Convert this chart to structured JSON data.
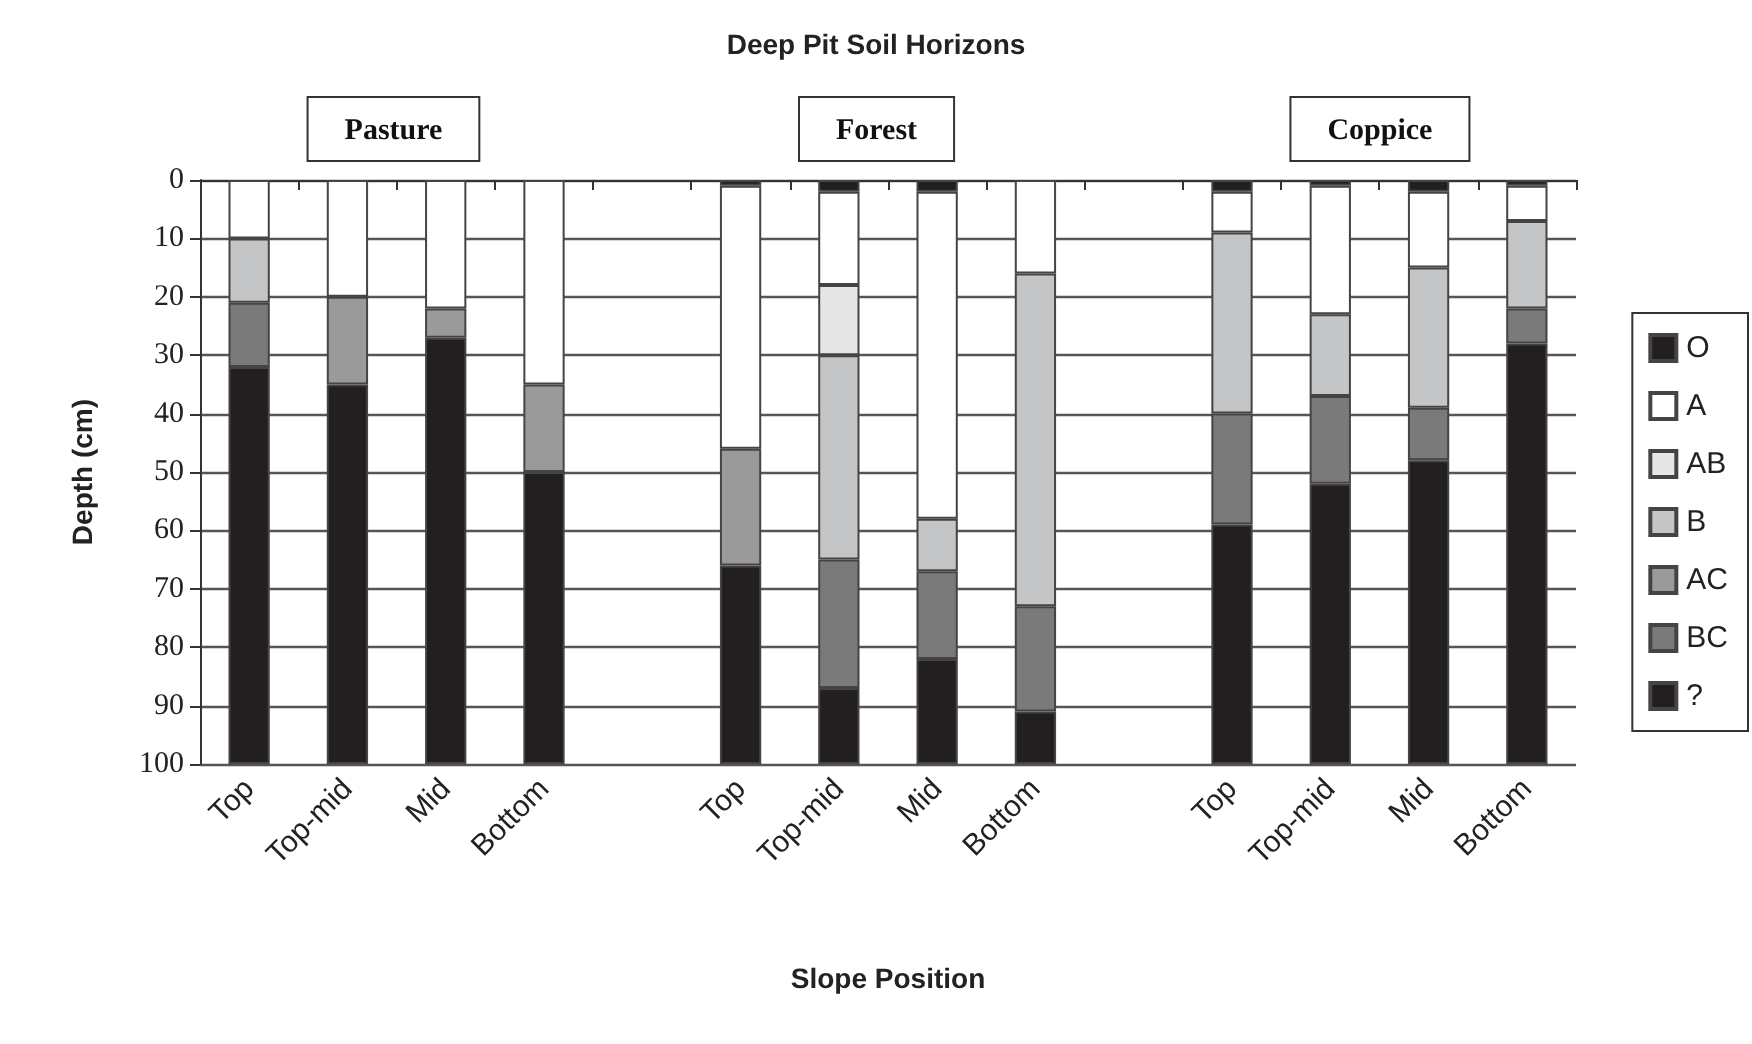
{
  "chart_data": {
    "type": "bar",
    "stacked": true,
    "title": "Deep Pit Soil Horizons",
    "xlabel": "Slope Position",
    "ylabel": "Depth (cm)",
    "categories": [
      "Top",
      "Top-mid",
      "Mid",
      "Bottom",
      null,
      "Top",
      "Top-mid",
      "Mid",
      "Bottom",
      null,
      "Top",
      "Top-mid",
      "Mid",
      "Bottom"
    ],
    "series": [
      {
        "name": "O",
        "color": "#231f20",
        "values": [
          0,
          0,
          0,
          0,
          null,
          1,
          2,
          2,
          0,
          null,
          2,
          1,
          2,
          1
        ]
      },
      {
        "name": "A",
        "color": "#ffffff",
        "values": [
          10,
          20,
          22,
          35,
          null,
          45,
          16,
          56,
          16,
          null,
          7,
          22,
          13,
          6
        ]
      },
      {
        "name": "AB",
        "color": "#e6e6e6",
        "values": [
          0,
          0,
          0,
          0,
          null,
          0,
          12,
          0,
          0,
          null,
          0,
          0,
          0,
          0
        ]
      },
      {
        "name": "B",
        "color": "#c4c5c7",
        "values": [
          11,
          0,
          0,
          0,
          null,
          0,
          35,
          9,
          57,
          null,
          31,
          14,
          24,
          15
        ]
      },
      {
        "name": "AC",
        "color": "#9a9a9a",
        "values": [
          0,
          15,
          5,
          15,
          null,
          20,
          0,
          0,
          0,
          null,
          0,
          0,
          0,
          0
        ]
      },
      {
        "name": "BC",
        "color": "#7a7a7a",
        "values": [
          11,
          0,
          0,
          0,
          null,
          0,
          22,
          15,
          18,
          null,
          19,
          15,
          9,
          6
        ]
      },
      {
        "name": "?",
        "color": "#231f20",
        "values": [
          68,
          65,
          73,
          50,
          null,
          34,
          13,
          18,
          9,
          null,
          41,
          48,
          52,
          72
        ]
      }
    ],
    "ylim": [
      100,
      0
    ],
    "yticks": [
      0,
      10,
      20,
      30,
      40,
      50,
      60,
      70,
      80,
      90,
      100
    ],
    "grid": "y",
    "legend": "right",
    "annotations": [
      "Pasture",
      "Forest",
      "Coppice"
    ]
  }
}
